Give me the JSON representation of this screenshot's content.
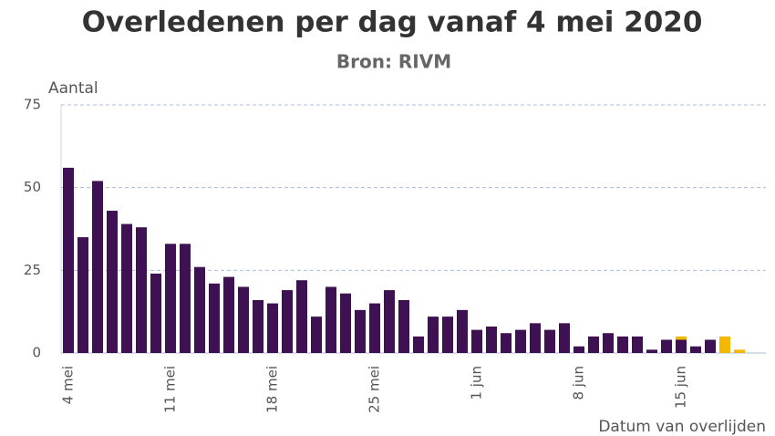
{
  "chart_data": {
    "type": "bar",
    "title": "Overledenen per dag vanaf 4 mei 2020",
    "subtitle": "Bron: RIVM",
    "y_label": "Aantal",
    "x_label": "Datum van overlijden",
    "categories": [
      "4 mei",
      null,
      null,
      null,
      null,
      null,
      null,
      "11 mei",
      null,
      null,
      null,
      null,
      null,
      null,
      "18 mei",
      null,
      null,
      null,
      null,
      null,
      null,
      "25 mei",
      null,
      null,
      null,
      null,
      null,
      null,
      "1 jun",
      null,
      null,
      null,
      null,
      null,
      null,
      "8 jun",
      null,
      null,
      null,
      null,
      null,
      null,
      "15 jun",
      null,
      null,
      null,
      null
    ],
    "series": [
      {
        "color": "#3d1152",
        "values": [
          56,
          35,
          52,
          43,
          39,
          38,
          24,
          33,
          33,
          26,
          21,
          23,
          20,
          16,
          15,
          19,
          22,
          11,
          20,
          18,
          13,
          15,
          19,
          16,
          5,
          11,
          11,
          13,
          7,
          8,
          6,
          7,
          9,
          7,
          9,
          2,
          5,
          6,
          5,
          5,
          1,
          4,
          4,
          2,
          4,
          0,
          0
        ]
      },
      {
        "color": "#f5b800",
        "values": [
          0,
          0,
          0,
          0,
          0,
          0,
          0,
          0,
          0,
          0,
          0,
          0,
          0,
          0,
          0,
          0,
          0,
          0,
          0,
          0,
          0,
          0,
          0,
          0,
          0,
          0,
          0,
          0,
          0,
          0,
          0,
          0,
          0,
          0,
          0,
          0,
          0,
          0,
          0,
          0,
          0,
          0,
          1,
          0,
          0,
          5,
          1
        ]
      }
    ],
    "stacked": true,
    "ylim": [
      0,
      75
    ],
    "yticks": [
      0,
      25,
      50,
      75
    ],
    "grid": true
  }
}
